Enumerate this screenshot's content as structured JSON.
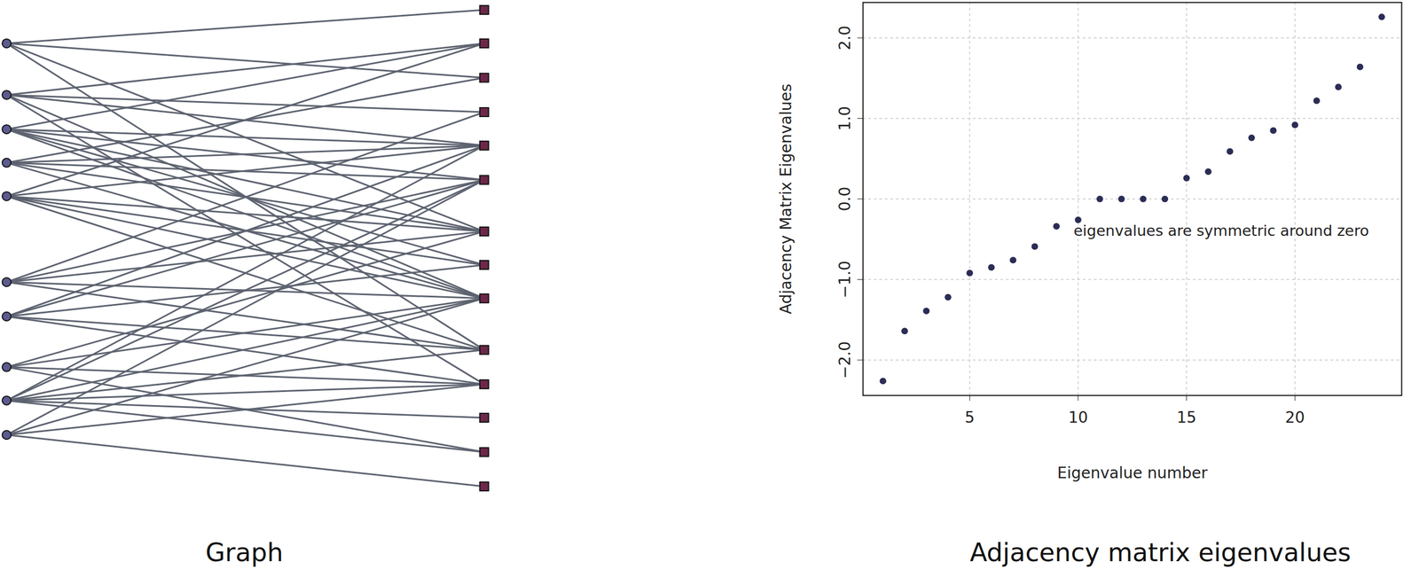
{
  "chart_data": [
    {
      "type": "graph",
      "title": "Graph",
      "left_nodes": 10,
      "right_nodes": 14,
      "edges": [
        [
          0,
          0
        ],
        [
          0,
          2
        ],
        [
          0,
          6
        ],
        [
          0,
          9
        ],
        [
          1,
          1
        ],
        [
          1,
          3
        ],
        [
          1,
          4
        ],
        [
          1,
          8
        ],
        [
          1,
          10
        ],
        [
          2,
          1
        ],
        [
          2,
          4
        ],
        [
          2,
          5
        ],
        [
          2,
          6
        ],
        [
          2,
          7
        ],
        [
          2,
          8
        ],
        [
          3,
          2
        ],
        [
          3,
          4
        ],
        [
          3,
          5
        ],
        [
          3,
          6
        ],
        [
          3,
          8
        ],
        [
          4,
          1
        ],
        [
          4,
          4
        ],
        [
          4,
          6
        ],
        [
          4,
          7
        ],
        [
          4,
          8
        ],
        [
          4,
          9
        ],
        [
          5,
          3
        ],
        [
          5,
          5
        ],
        [
          5,
          6
        ],
        [
          5,
          8
        ],
        [
          5,
          9
        ],
        [
          6,
          4
        ],
        [
          6,
          5
        ],
        [
          6,
          7
        ],
        [
          6,
          9
        ],
        [
          6,
          10
        ],
        [
          7,
          6
        ],
        [
          7,
          8
        ],
        [
          7,
          10
        ],
        [
          7,
          12
        ],
        [
          8,
          4
        ],
        [
          8,
          5
        ],
        [
          8,
          8
        ],
        [
          8,
          9
        ],
        [
          8,
          10
        ],
        [
          8,
          11
        ],
        [
          8,
          12
        ],
        [
          9,
          5
        ],
        [
          9,
          8
        ],
        [
          9,
          10
        ],
        [
          9,
          13
        ]
      ]
    },
    {
      "type": "scatter",
      "title": "Adjacency matrix eigenvalues",
      "x_label": "Eigenvalue number",
      "y_label": "Adjacency Matrix Eigenvalues",
      "x": [
        1,
        2,
        3,
        4,
        5,
        6,
        7,
        8,
        9,
        10,
        11,
        12,
        13,
        14,
        15,
        16,
        17,
        18,
        19,
        20,
        21,
        22,
        23,
        24
      ],
      "values": [
        -2.26,
        -1.64,
        -1.39,
        -1.22,
        -0.92,
        -0.85,
        -0.76,
        -0.59,
        -0.34,
        -0.26,
        0,
        0,
        0,
        0,
        0.26,
        0.34,
        0.59,
        0.76,
        0.85,
        0.92,
        1.22,
        1.39,
        1.64,
        2.26
      ],
      "xlim": [
        0.08,
        24.92
      ],
      "ylim": [
        -2.44,
        2.44
      ],
      "xticks": [
        5,
        10,
        15,
        20
      ],
      "yticks": [
        -2,
        -1,
        0,
        1,
        2
      ],
      "grid": true,
      "color": "#2b2d55",
      "annotation": {
        "text": "eigenvalues are symmetric around zero",
        "x": 16.6,
        "y": -0.4
      }
    }
  ]
}
